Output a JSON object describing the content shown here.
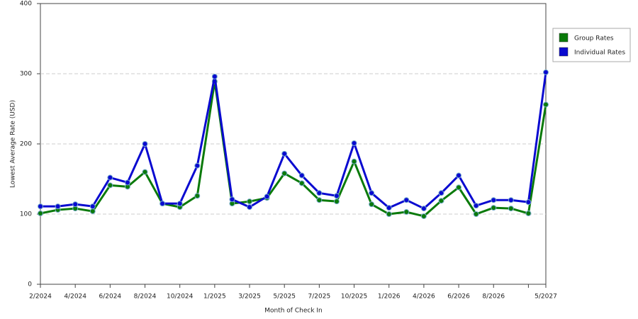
{
  "chart_data": {
    "type": "line",
    "x_label": "Month of Check In",
    "y_label": "Lowest Average Rate (USD)",
    "categories": [
      "2/2024",
      null,
      "4/2024",
      null,
      "6/2024",
      null,
      "8/2024",
      null,
      "10/2024",
      null,
      "1/2025",
      null,
      "3/2025",
      null,
      "5/2025",
      null,
      "7/2025",
      null,
      "10/2025",
      null,
      "1/2026",
      null,
      "4/2026",
      null,
      "6/2026",
      null,
      "8/2026",
      null,
      null,
      "5/2027"
    ],
    "series": [
      {
        "name": "Group Rates",
        "color": "#0a7a0a",
        "values": [
          101,
          106,
          108,
          104,
          141,
          139,
          160,
          115,
          110,
          126,
          289,
          115,
          118,
          123,
          158,
          144,
          120,
          118,
          175,
          114,
          100,
          103,
          97,
          119,
          138,
          100,
          109,
          108,
          101,
          256
        ]
      },
      {
        "name": "Individual Rates",
        "color": "#0a0ad0",
        "values": [
          111,
          111,
          114,
          111,
          152,
          145,
          200,
          115,
          115,
          169,
          296,
          121,
          110,
          125,
          186,
          155,
          130,
          126,
          201,
          130,
          109,
          120,
          108,
          130,
          155,
          112,
          120,
          120,
          117,
          302
        ]
      }
    ],
    "ylim": [
      0,
      400
    ],
    "yticks": [
      0,
      100,
      200,
      300,
      400
    ],
    "grid": true
  }
}
